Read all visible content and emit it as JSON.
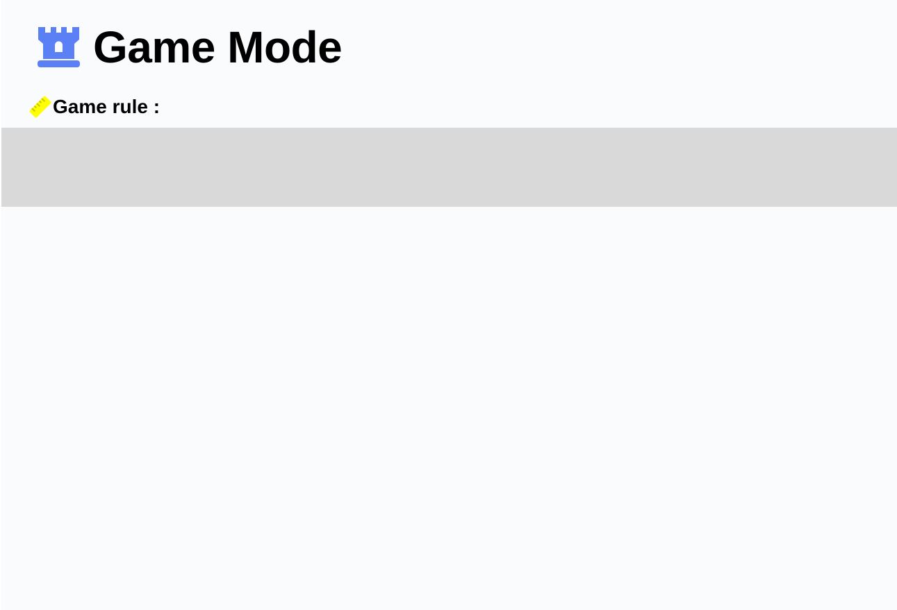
{
  "header": {
    "title": "Game Mode",
    "icon": "castle-icon",
    "icon_color": "#5b7ff5"
  },
  "rule_section": {
    "label": "Game rule :",
    "icon": "ruler-icon",
    "icon_color": "#ffff00"
  },
  "colors": {
    "page_background": "#f9fbfd",
    "panel_background": "#d9d9d9"
  }
}
